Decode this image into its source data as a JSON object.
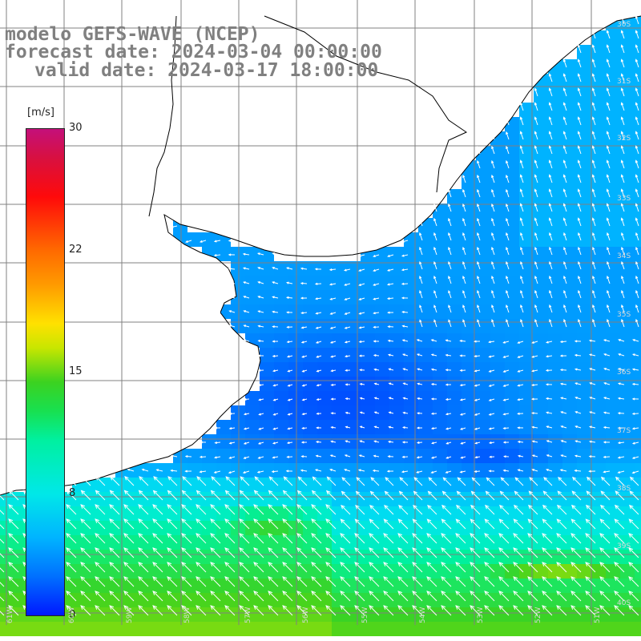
{
  "titles": {
    "model": "modelo GEFS-WAVE (NCEP)",
    "forecast": "forecast date: 2024-03-04 00:00:00",
    "valid": "valid date: 2024-03-17 18:00:00"
  },
  "colorbar": {
    "unit": "[m/s]",
    "ticks": [
      "30",
      "22",
      "15",
      "8",
      "0"
    ],
    "range": [
      0,
      30
    ],
    "colors": [
      "#0018ff",
      "#0070ff",
      "#00b4ff",
      "#00e8e8",
      "#00f0a0",
      "#18e050",
      "#3cd220",
      "#c8e600",
      "#ffe100",
      "#ff9a00",
      "#ff6a00",
      "#ff0a0a",
      "#d81040",
      "#c4107a"
    ]
  },
  "map": {
    "region": "South Atlantic off Uruguay / Buenos Aires",
    "lat_range": [
      -41,
      -30
    ],
    "lon_range": [
      -61,
      -50
    ],
    "lat_labels": [
      "30S",
      "31S",
      "32S",
      "33S",
      "34S",
      "35S",
      "36S",
      "37S",
      "38S",
      "39S",
      "40S",
      "41S"
    ],
    "lon_labels": [
      "61W",
      "60W",
      "59W",
      "58W",
      "57W",
      "56W",
      "55W",
      "54W",
      "53W",
      "52W",
      "51W",
      "50W"
    ],
    "land_color": "#ffffff",
    "grid_color": "#808080",
    "coast_color": "#000000",
    "arrow_color": "#ffffff"
  }
}
